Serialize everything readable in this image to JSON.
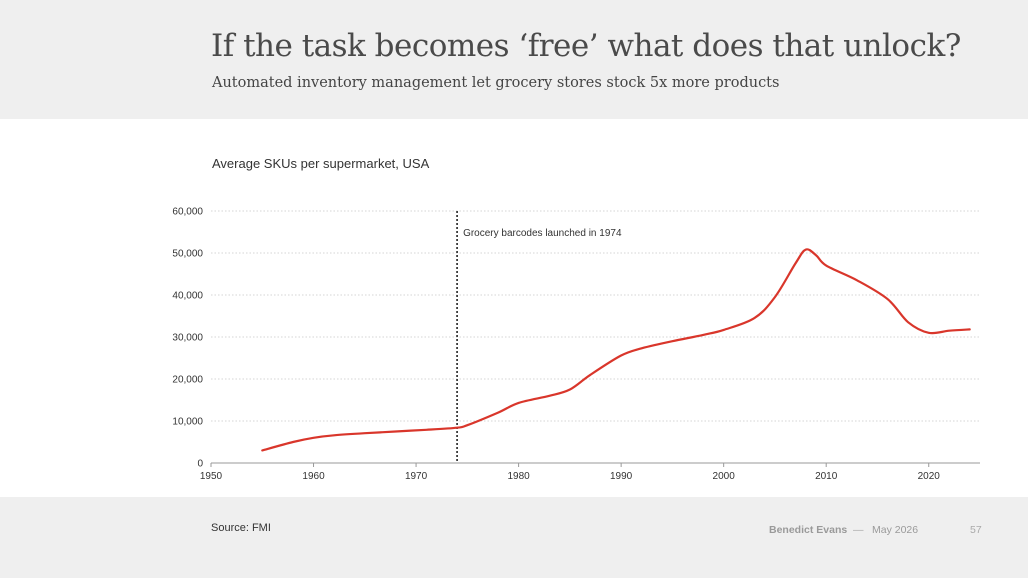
{
  "header": {
    "title": "If the task becomes ‘free’ what does that unlock?",
    "subtitle": "Automated inventory management let grocery stores stock 5x more products"
  },
  "footer": {
    "source": "Source: FMI",
    "author": "Benedict Evans",
    "separator": "—",
    "date": "May 2026",
    "page": "57"
  },
  "chart_data": {
    "type": "line",
    "title": "Average SKUs per supermarket, USA",
    "xlim": [
      1950,
      2025
    ],
    "ylim": [
      0,
      60000
    ],
    "x_ticks": [
      1950,
      1960,
      1970,
      1980,
      1990,
      2000,
      2010,
      2020
    ],
    "x_tick_labels": [
      "1950",
      "1960",
      "1970",
      "1980",
      "1990",
      "2000",
      "2010",
      "2020"
    ],
    "y_ticks": [
      0,
      10000,
      20000,
      30000,
      40000,
      50000,
      60000
    ],
    "y_tick_labels": [
      "0",
      "10,000",
      "20,000",
      "30,000",
      "40,000",
      "50,000",
      "60,000"
    ],
    "grid": "horizontal dotted",
    "line_color": "#d9362b",
    "series": [
      {
        "x": [
          1955,
          1958,
          1960,
          1962,
          1965,
          1968,
          1971,
          1974,
          1975,
          1978,
          1980,
          1983,
          1985,
          1987,
          1990,
          1992,
          1995,
          1998,
          2000,
          2003,
          2005,
          2007,
          2008,
          2009,
          2010,
          2013,
          2016,
          2018,
          2020,
          2022,
          2024
        ],
        "values": [
          3000,
          5000,
          6000,
          6600,
          7100,
          7500,
          7900,
          8400,
          9000,
          12000,
          14300,
          16000,
          17500,
          21000,
          25600,
          27300,
          29000,
          30500,
          31700,
          34500,
          39500,
          47500,
          50800,
          49500,
          47000,
          43500,
          39000,
          33500,
          31000,
          31500,
          31800
        ]
      }
    ],
    "annotations": [
      {
        "x": 1974,
        "text": "Grocery barcodes launched in 1974",
        "style": "dotted vertical line"
      }
    ]
  }
}
